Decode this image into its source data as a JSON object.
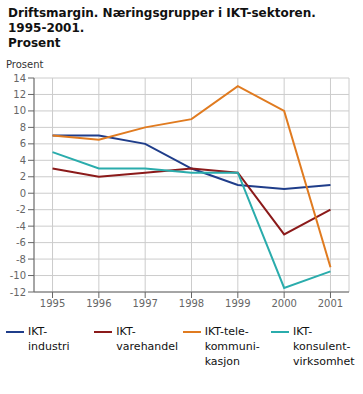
{
  "chart_data": {
    "type": "line",
    "title": "Driftsmargin. Næringsgrupper i IKT-sektoren. 1995-2001.",
    "subtitle": "Prosent",
    "ylabel": "Prosent",
    "x": [
      1995,
      1996,
      1997,
      1998,
      1999,
      2000,
      2001
    ],
    "series": [
      {
        "name": "IKT-\nindustri",
        "color": "#1f3d8a",
        "values": [
          7.0,
          7.0,
          6.0,
          3.0,
          1.0,
          0.5,
          1.0
        ]
      },
      {
        "name": "IKT-\nvarehandel",
        "color": "#8b1a1a",
        "values": [
          3.0,
          2.0,
          2.5,
          3.0,
          2.5,
          -5.0,
          -2.0
        ]
      },
      {
        "name": "IKT-tele-\nkommuni-\nkasjon",
        "color": "#e07b20",
        "values": [
          7.0,
          6.5,
          8.0,
          9.0,
          13.0,
          10.0,
          -9.0
        ]
      },
      {
        "name": "IKT-\nkonsulent-\nvirksomhet",
        "color": "#2aacac",
        "values": [
          5.0,
          3.0,
          3.0,
          2.5,
          2.5,
          -11.5,
          -9.5
        ]
      }
    ],
    "xlim": [
      1994.6,
      2001.4
    ],
    "xticks": [
      1995,
      1996,
      1997,
      1998,
      1999,
      2000,
      2001
    ],
    "ylim": [
      -12,
      14
    ],
    "yticks": [
      -12,
      -10,
      -8,
      -6,
      -4,
      -2,
      0,
      2,
      4,
      6,
      8,
      10,
      12,
      14
    ],
    "grid": true,
    "legend": "bottom"
  }
}
